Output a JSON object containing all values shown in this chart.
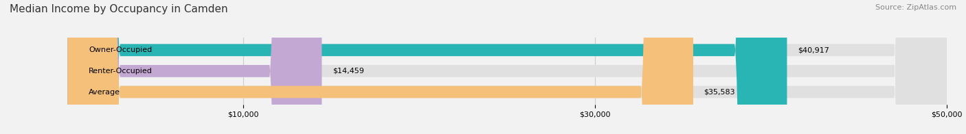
{
  "title": "Median Income by Occupancy in Camden",
  "source": "Source: ZipAtlas.com",
  "categories": [
    "Owner-Occupied",
    "Renter-Occupied",
    "Average"
  ],
  "values": [
    40917,
    14459,
    35583
  ],
  "bar_colors": [
    "#2ab5b5",
    "#c4a8d4",
    "#f5c07a"
  ],
  "bar_labels": [
    "$40,917",
    "$14,459",
    "$35,583"
  ],
  "xlim": [
    0,
    50000
  ],
  "xticks": [
    10000,
    30000,
    50000
  ],
  "xticklabels": [
    "$10,000",
    "$30,000",
    "$50,000"
  ],
  "background_color": "#f2f2f2",
  "bar_bg_color": "#e0e0e0",
  "title_fontsize": 11,
  "source_fontsize": 8,
  "label_fontsize": 8,
  "bar_height": 0.58,
  "figsize": [
    14.06,
    1.96
  ],
  "dpi": 100
}
